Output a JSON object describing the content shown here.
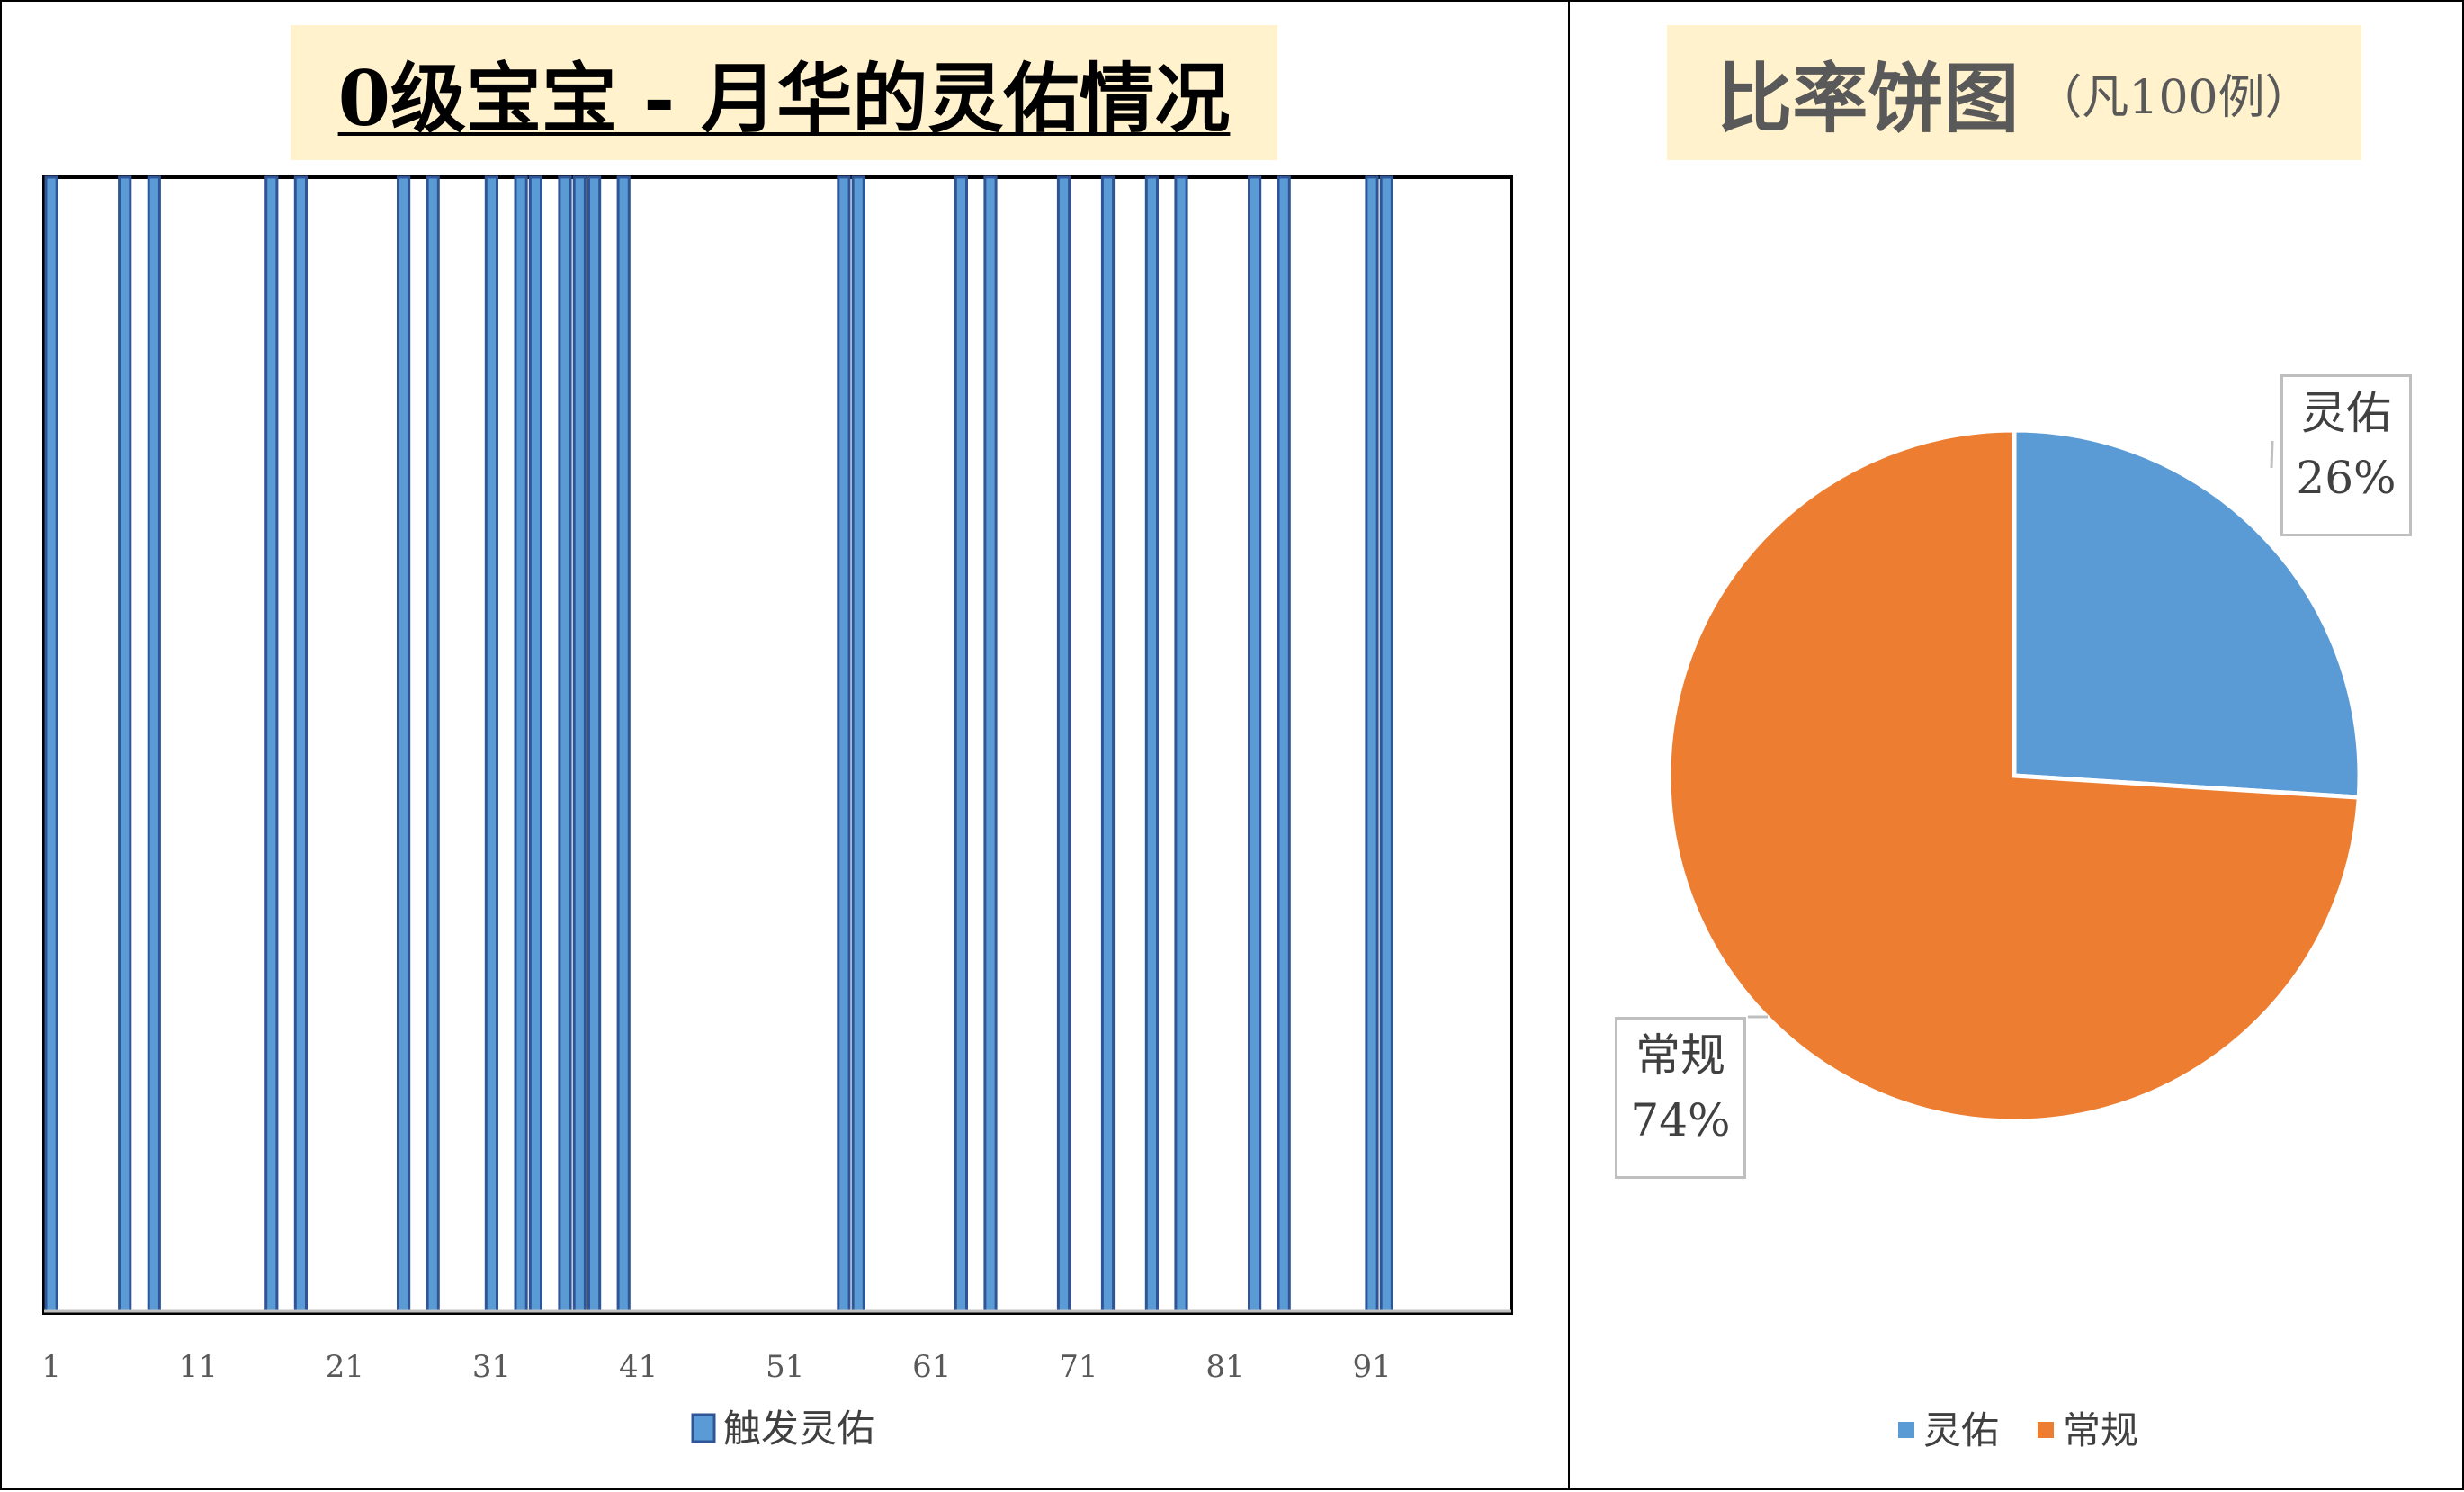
{
  "bar_chart": {
    "title": "0级宝宝 - 月华的灵佑情况",
    "legend_label": "触发灵佑"
  },
  "pie_chart": {
    "title": "比率饼图",
    "subtitle": "（凡100例）",
    "legend": [
      {
        "label": "灵佑"
      },
      {
        "label": "常规"
      }
    ],
    "callouts": {
      "lingyou_name": "灵佑",
      "lingyou_pct": "26%",
      "changgui_name": "常规",
      "changgui_pct": "74%"
    }
  },
  "colors": {
    "bar_fill": "#5B9BD5",
    "bar_border": "#2F5597",
    "pie_lingyou": "#5B9BD5",
    "pie_changgui": "#ED7D31",
    "title_bg": "#FFF2CC"
  },
  "chart_data": [
    {
      "type": "bar",
      "title": "0级宝宝 - 月华的灵佑情况",
      "series": [
        {
          "name": "触发灵佑",
          "triggered_trials": [
            1,
            6,
            8,
            16,
            18,
            25,
            27,
            31,
            33,
            34,
            36,
            37,
            38,
            40,
            55,
            56,
            63,
            65,
            70,
            73,
            76,
            78,
            83,
            85,
            91,
            92
          ]
        }
      ],
      "x_range": [
        1,
        100
      ],
      "x_tick_labels": [
        "1",
        "11",
        "21",
        "31",
        "41",
        "51",
        "61",
        "71",
        "81",
        "91"
      ],
      "ylim": [
        0,
        1
      ],
      "legend_position": "bottom"
    },
    {
      "type": "pie",
      "title": "比率饼图",
      "subtitle": "（凡100例）",
      "slices": [
        {
          "label": "灵佑",
          "value": 26,
          "percent": "26%"
        },
        {
          "label": "常规",
          "value": 74,
          "percent": "74%"
        }
      ],
      "legend_position": "bottom"
    }
  ]
}
